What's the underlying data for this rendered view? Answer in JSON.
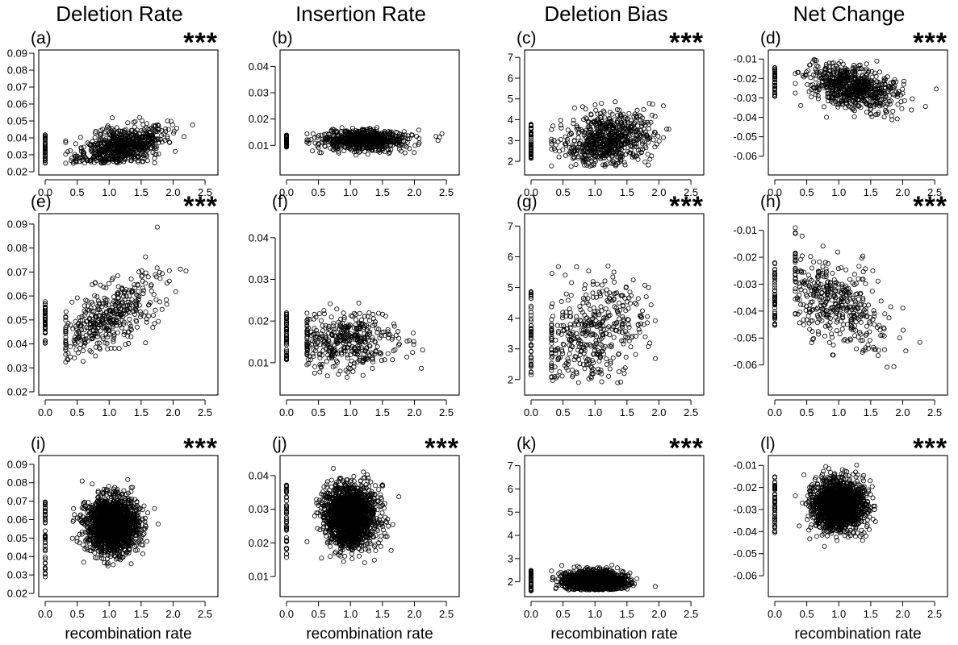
{
  "figure": {
    "column_titles": [
      "Deletion Rate",
      "Insertion Rate",
      "Deletion Bias",
      "Net Change"
    ],
    "xlabel": "recombination rate"
  },
  "chart_data": [
    {
      "type": "scatter",
      "panel_label": "(a)",
      "significance": "***",
      "xlim": [
        0,
        2.6
      ],
      "ylim": [
        0.02,
        0.09
      ],
      "xticks": [
        "0.0",
        "0.5",
        "1.0",
        "1.5",
        "2.0",
        "2.5"
      ],
      "yticks": [
        "0.02",
        "0.03",
        "0.04",
        "0.05",
        "0.06",
        "0.07",
        "0.08",
        "0.09"
      ],
      "xlabel": "",
      "cluster": {
        "n": 700,
        "x_center": 1.2,
        "x_sd": 0.35,
        "y_base": 0.026,
        "slope": 0.0075,
        "y_sd": 0.0055
      },
      "zero_group": {
        "n": 45,
        "y_min": 0.025,
        "y_max": 0.042
      }
    },
    {
      "type": "scatter",
      "panel_label": "(b)",
      "significance": "",
      "xlim": [
        0,
        2.6
      ],
      "ylim": [
        0.0,
        0.045
      ],
      "xticks": [
        "0.0",
        "0.5",
        "1.0",
        "1.5",
        "2.0",
        "2.5"
      ],
      "yticks": [
        "0.01",
        "0.02",
        "0.03",
        "0.04"
      ],
      "xlabel": "",
      "cluster": {
        "n": 700,
        "x_center": 1.2,
        "x_sd": 0.35,
        "y_base": 0.012,
        "slope": 0.0,
        "y_sd": 0.002
      },
      "zero_group": {
        "n": 45,
        "y_min": 0.009,
        "y_max": 0.014
      }
    },
    {
      "type": "scatter",
      "panel_label": "(c)",
      "significance": "***",
      "xlim": [
        0,
        2.6
      ],
      "ylim": [
        1.5,
        7.2
      ],
      "xticks": [
        "0.0",
        "0.5",
        "1.0",
        "1.5",
        "2.0",
        "2.5"
      ],
      "yticks": [
        "2",
        "3",
        "4",
        "5",
        "6",
        "7"
      ],
      "xlabel": "",
      "cluster": {
        "n": 700,
        "x_center": 1.2,
        "x_sd": 0.35,
        "y_base": 2.3,
        "slope": 0.6,
        "y_sd": 0.65
      },
      "zero_group": {
        "n": 45,
        "y_min": 2.0,
        "y_max": 3.8
      }
    },
    {
      "type": "scatter",
      "panel_label": "(d)",
      "significance": "***",
      "xlim": [
        0,
        2.6
      ],
      "ylim": [
        -0.068,
        -0.007
      ],
      "xticks": [
        "0.0",
        "0.5",
        "1.0",
        "1.5",
        "2.0",
        "2.5"
      ],
      "yticks": [
        "-0.06",
        "-0.05",
        "-0.04",
        "-0.03",
        "-0.02",
        "-0.01"
      ],
      "xlabel": "",
      "cluster": {
        "n": 700,
        "x_center": 1.2,
        "x_sd": 0.35,
        "y_base": -0.016,
        "slope": -0.0065,
        "y_sd": 0.0055
      },
      "zero_group": {
        "n": 45,
        "y_min": -0.03,
        "y_max": -0.014
      }
    },
    {
      "type": "scatter",
      "panel_label": "(e)",
      "significance": "***",
      "xlim": [
        0,
        2.6
      ],
      "ylim": [
        0.02,
        0.093
      ],
      "xticks": [
        "0.0",
        "0.5",
        "1.0",
        "1.5",
        "2.0",
        "2.5"
      ],
      "yticks": [
        "0.02",
        "0.03",
        "0.04",
        "0.05",
        "0.06",
        "0.07",
        "0.08",
        "0.09"
      ],
      "xlabel": "",
      "cluster": {
        "n": 420,
        "x_center": 0.95,
        "x_sd": 0.42,
        "y_base": 0.039,
        "slope": 0.0125,
        "y_sd": 0.0065
      },
      "zero_group": {
        "n": 45,
        "y_min": 0.04,
        "y_max": 0.058
      }
    },
    {
      "type": "scatter",
      "panel_label": "(f)",
      "significance": "",
      "xlim": [
        0,
        2.6
      ],
      "ylim": [
        0.003,
        0.045
      ],
      "xticks": [
        "0.0",
        "0.5",
        "1.0",
        "1.5",
        "2.0",
        "2.5"
      ],
      "yticks": [
        "0.01",
        "0.02",
        "0.03",
        "0.04"
      ],
      "xlabel": "",
      "cluster": {
        "n": 420,
        "x_center": 0.95,
        "x_sd": 0.42,
        "y_base": 0.015,
        "slope": 0.0,
        "y_sd": 0.0035
      },
      "zero_group": {
        "n": 45,
        "y_min": 0.01,
        "y_max": 0.022
      }
    },
    {
      "type": "scatter",
      "panel_label": "(g)",
      "significance": "***",
      "xlim": [
        0,
        2.6
      ],
      "ylim": [
        1.6,
        7.3
      ],
      "xticks": [
        "0.0",
        "0.5",
        "1.0",
        "1.5",
        "2.0",
        "2.5"
      ],
      "yticks": [
        "2",
        "3",
        "4",
        "5",
        "6",
        "7"
      ],
      "xlabel": "",
      "cluster": {
        "n": 420,
        "x_center": 0.95,
        "x_sd": 0.42,
        "y_base": 2.8,
        "slope": 0.7,
        "y_sd": 0.85
      },
      "zero_group": {
        "n": 45,
        "y_min": 2.1,
        "y_max": 4.9
      }
    },
    {
      "type": "scatter",
      "panel_label": "(h)",
      "significance": "***",
      "xlim": [
        0,
        2.6
      ],
      "ylim": [
        -0.07,
        -0.005
      ],
      "xticks": [
        "0.0",
        "0.5",
        "1.0",
        "1.5",
        "2.0",
        "2.5"
      ],
      "yticks": [
        "-0.06",
        "-0.05",
        "-0.04",
        "-0.03",
        "-0.02",
        "-0.01"
      ],
      "xlabel": "",
      "cluster": {
        "n": 420,
        "x_center": 0.95,
        "x_sd": 0.42,
        "y_base": -0.026,
        "slope": -0.0115,
        "y_sd": 0.0075
      },
      "zero_group": {
        "n": 45,
        "y_min": -0.046,
        "y_max": -0.022
      }
    },
    {
      "type": "scatter",
      "panel_label": "(i)",
      "significance": "***",
      "xlim": [
        0,
        2.6
      ],
      "ylim": [
        0.02,
        0.093
      ],
      "xticks": [
        "0.0",
        "0.5",
        "1.0",
        "1.5",
        "2.0",
        "2.5"
      ],
      "yticks": [
        "0.02",
        "0.03",
        "0.04",
        "0.05",
        "0.06",
        "0.07",
        "0.08",
        "0.09"
      ],
      "xlabel": "recombination rate",
      "cluster": {
        "n": 1800,
        "x_center": 1.05,
        "x_sd": 0.2,
        "y_base": 0.057,
        "slope": 0.0,
        "y_sd": 0.0075
      },
      "zero_group": {
        "n": 45,
        "y_min": 0.027,
        "y_max": 0.073
      }
    },
    {
      "type": "scatter",
      "panel_label": "(j)",
      "significance": "***",
      "xlim": [
        0,
        2.6
      ],
      "ylim": [
        0.005,
        0.045
      ],
      "xticks": [
        "0.0",
        "0.5",
        "1.0",
        "1.5",
        "2.0",
        "2.5"
      ],
      "yticks": [
        "0.01",
        "0.02",
        "0.03",
        "0.04"
      ],
      "xlabel": "recombination rate",
      "cluster": {
        "n": 1800,
        "x_center": 1.0,
        "x_sd": 0.2,
        "y_base": 0.028,
        "slope": 0.0,
        "y_sd": 0.0045
      },
      "zero_group": {
        "n": 45,
        "y_min": 0.014,
        "y_max": 0.038
      }
    },
    {
      "type": "scatter",
      "panel_label": "(k)",
      "significance": "***",
      "xlim": [
        0,
        2.6
      ],
      "ylim": [
        1.5,
        7.3
      ],
      "xticks": [
        "0.0",
        "0.5",
        "1.0",
        "1.5",
        "2.0",
        "2.5"
      ],
      "yticks": [
        "2",
        "3",
        "4",
        "5",
        "6",
        "7"
      ],
      "xlabel": "recombination rate",
      "cluster": {
        "n": 1800,
        "x_center": 1.0,
        "x_sd": 0.22,
        "y_base": 2.0,
        "slope": 0.0,
        "y_sd": 0.22
      },
      "zero_group": {
        "n": 45,
        "y_min": 1.6,
        "y_max": 2.5
      }
    },
    {
      "type": "scatter",
      "panel_label": "(l)",
      "significance": "***",
      "xlim": [
        0,
        2.6
      ],
      "ylim": [
        -0.068,
        -0.007
      ],
      "xticks": [
        "0.0",
        "0.5",
        "1.0",
        "1.5",
        "2.0",
        "2.5"
      ],
      "yticks": [
        "-0.06",
        "-0.05",
        "-0.04",
        "-0.03",
        "-0.02",
        "-0.01"
      ],
      "xlabel": "recombination rate",
      "cluster": {
        "n": 1800,
        "x_center": 1.0,
        "x_sd": 0.2,
        "y_base": -0.028,
        "slope": 0.0,
        "y_sd": 0.0055
      },
      "zero_group": {
        "n": 45,
        "y_min": -0.041,
        "y_max": -0.014
      }
    }
  ]
}
